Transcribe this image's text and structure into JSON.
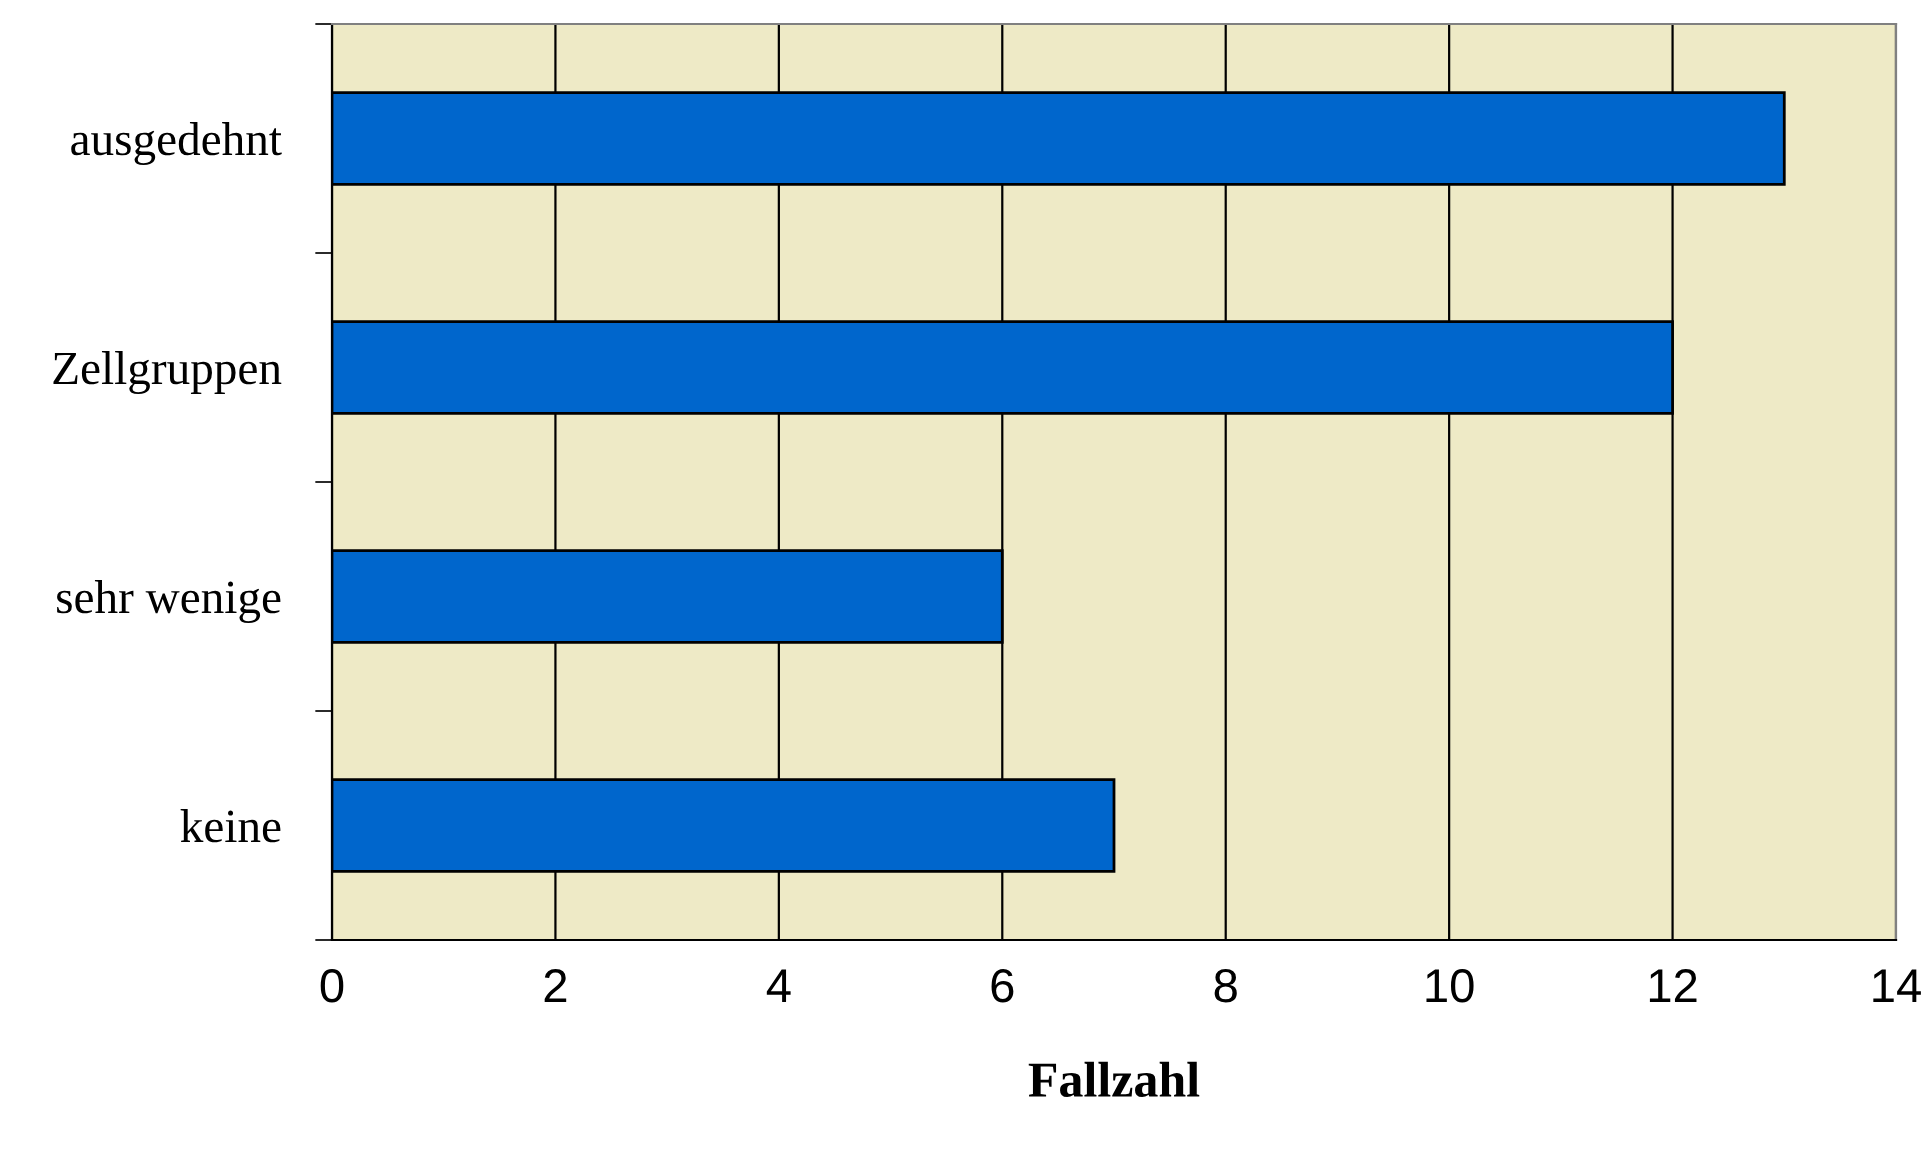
{
  "chart_data": {
    "type": "bar",
    "orientation": "horizontal",
    "categories": [
      "ausgedehnt",
      "Zellgruppen",
      "sehr wenige",
      "keine"
    ],
    "values": [
      13,
      12,
      6,
      7
    ],
    "color": "#0066cc",
    "xlabel": "Fallzahl",
    "xlim": [
      0,
      14
    ],
    "xticks": [
      0,
      2,
      4,
      6,
      8,
      10,
      12,
      14
    ],
    "grid": "x",
    "legend": false
  }
}
